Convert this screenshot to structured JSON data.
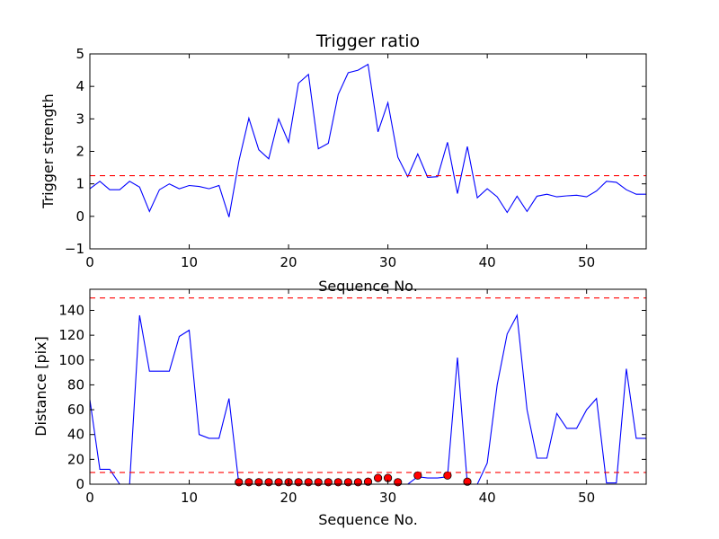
{
  "colors": {
    "line": "#0000ff",
    "threshold": "#ff0000",
    "marker": "#ff0000",
    "axes": "#000000",
    "background": "#ffffff"
  },
  "chart_data": [
    {
      "type": "line",
      "title": "Trigger ratio",
      "xlabel": "Sequence No.",
      "ylabel": "Trigger strength",
      "xlim": [
        0,
        56
      ],
      "ylim": [
        -1,
        5
      ],
      "xticks": [
        "0",
        "10",
        "20",
        "30",
        "40",
        "50"
      ],
      "yticks": [
        "−1",
        "0",
        "1",
        "2",
        "3",
        "4",
        "5"
      ],
      "grid": false,
      "series": [
        {
          "style": "solid-line",
          "x": [
            0,
            1,
            2,
            3,
            4,
            5,
            6,
            7,
            8,
            9,
            10,
            11,
            12,
            13,
            14,
            15,
            16,
            17,
            18,
            19,
            20,
            21,
            22,
            23,
            24,
            25,
            26,
            27,
            28,
            29,
            30,
            31,
            32,
            33,
            34,
            35,
            36,
            37,
            38,
            39,
            40,
            41,
            42,
            43,
            44,
            45,
            46,
            47,
            48,
            49,
            50,
            51,
            52,
            53,
            54,
            55,
            56
          ],
          "values": [
            0.85,
            1.08,
            0.82,
            0.82,
            1.08,
            0.9,
            0.15,
            0.82,
            1.0,
            0.85,
            0.95,
            0.92,
            0.85,
            0.95,
            -0.02,
            1.7,
            3.02,
            2.05,
            1.77,
            3.0,
            2.28,
            4.1,
            4.37,
            2.08,
            2.25,
            3.75,
            4.42,
            4.5,
            4.68,
            2.6,
            3.5,
            1.82,
            1.22,
            1.92,
            1.2,
            1.22,
            2.28,
            0.7,
            2.15,
            0.57,
            0.85,
            0.6,
            0.12,
            0.62,
            0.15,
            0.62,
            0.68,
            0.6,
            0.63,
            0.65,
            0.6,
            0.78,
            1.08,
            1.05,
            0.82,
            0.68,
            0.68
          ]
        },
        {
          "style": "dashed-threshold",
          "value": 1.25
        }
      ]
    },
    {
      "type": "line",
      "title": "",
      "xlabel": "Sequence No.",
      "ylabel": "Distance [pix]",
      "xlim": [
        0,
        56
      ],
      "ylim": [
        0,
        157
      ],
      "xticks": [
        "0",
        "10",
        "20",
        "30",
        "40",
        "50"
      ],
      "yticks": [
        "0",
        "20",
        "40",
        "60",
        "80",
        "100",
        "120",
        "140"
      ],
      "grid": false,
      "series": [
        {
          "style": "solid-line",
          "x": [
            0,
            1,
            2,
            3,
            4,
            5,
            6,
            7,
            8,
            9,
            10,
            11,
            12,
            13,
            14,
            15,
            16,
            17,
            18,
            19,
            20,
            21,
            22,
            23,
            24,
            25,
            26,
            27,
            28,
            29,
            30,
            31,
            32,
            33,
            34,
            35,
            36,
            37,
            38,
            39,
            40,
            41,
            42,
            43,
            44,
            45,
            46,
            47,
            48,
            49,
            50,
            51,
            52,
            53,
            54,
            55,
            56
          ],
          "values": [
            68,
            12,
            12,
            0,
            0,
            136,
            91,
            91,
            91,
            119,
            124,
            40,
            37,
            37,
            69,
            0,
            0,
            0,
            0,
            0,
            0,
            0,
            0,
            0,
            0,
            0,
            0,
            0,
            0,
            0,
            0,
            0,
            0,
            6,
            5,
            5,
            6,
            102,
            0,
            0,
            17,
            80,
            121,
            136,
            60,
            21,
            21,
            57,
            45,
            45,
            60,
            69,
            1,
            1,
            93,
            37,
            37
          ]
        },
        {
          "style": "markers",
          "x": [
            15,
            16,
            17,
            18,
            19,
            20,
            21,
            22,
            23,
            24,
            25,
            26,
            27,
            28,
            29,
            30,
            31,
            33,
            36,
            38
          ],
          "values": [
            1,
            0.5,
            0,
            0,
            0,
            0,
            0.5,
            0.5,
            0,
            0,
            0.5,
            1,
            1.5,
            2,
            5,
            5,
            0,
            7,
            7,
            2
          ]
        },
        {
          "style": "dashed-threshold",
          "value": 150
        },
        {
          "style": "dashed-threshold",
          "value": 9.5
        }
      ]
    }
  ]
}
